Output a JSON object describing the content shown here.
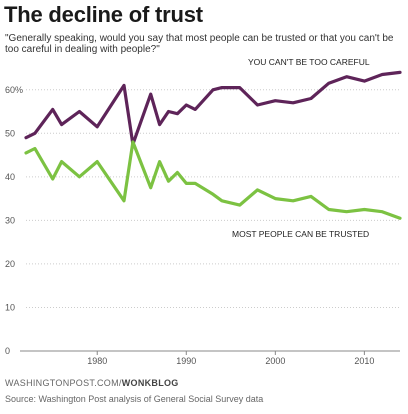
{
  "header": {
    "title": "The decline of trust",
    "subtitle": "\"Generally speaking, would you say that most people can be trusted or that you can't be too careful in dealing with people?\""
  },
  "footer": {
    "brand_main": "WASHINGTONPOST.COM/",
    "brand_sub": "WONKBLOG",
    "source": "Source: Washington Post analysis of General Social Survey data"
  },
  "colors": {
    "careful": "#5e2459",
    "trusted": "#7cc242",
    "axis": "#888888",
    "grid": "#cccccc",
    "tick_text": "#555555"
  },
  "chart_data": {
    "type": "line",
    "title": "The decline of trust",
    "xlabel": "",
    "ylabel": "",
    "xlim": [
      1972,
      2014
    ],
    "ylim": [
      0,
      65
    ],
    "x_ticks": [
      "1980",
      "1990",
      "2000",
      "2010"
    ],
    "x_tick_values": [
      1980,
      1990,
      2000,
      2010
    ],
    "y_ticks": [
      "0",
      "10",
      "20",
      "30",
      "40",
      "50",
      "60%"
    ],
    "y_tick_values": [
      0,
      10,
      20,
      30,
      40,
      50,
      60
    ],
    "grid": true,
    "series": [
      {
        "name": "YOU CAN'T BE TOO CAREFUL",
        "color": "#5e2459",
        "x": [
          1972,
          1973,
          1975,
          1976,
          1978,
          1980,
          1983,
          1984,
          1986,
          1987,
          1988,
          1989,
          1990,
          1991,
          1993,
          1994,
          1996,
          1998,
          2000,
          2002,
          2004,
          2006,
          2008,
          2010,
          2012,
          2014
        ],
        "values": [
          49,
          50,
          55.5,
          52,
          55,
          51.5,
          61,
          47.5,
          59,
          52,
          55,
          54.5,
          56.5,
          55.5,
          60,
          60.5,
          60.5,
          56.5,
          57.5,
          57,
          58,
          61.5,
          63,
          62,
          63.5,
          64
        ]
      },
      {
        "name": "MOST PEOPLE CAN BE TRUSTED",
        "color": "#7cc242",
        "x": [
          1972,
          1973,
          1975,
          1976,
          1978,
          1980,
          1983,
          1984,
          1986,
          1987,
          1988,
          1989,
          1990,
          1991,
          1993,
          1994,
          1996,
          1998,
          2000,
          2002,
          2004,
          2006,
          2008,
          2010,
          2012,
          2014
        ],
        "values": [
          45.5,
          46.5,
          39.5,
          43.5,
          40,
          43.5,
          34.5,
          48,
          37.5,
          43.5,
          39,
          41,
          38.5,
          38.5,
          36,
          34.5,
          33.5,
          37,
          35,
          34.5,
          35.5,
          32.5,
          32,
          32.5,
          32,
          30.5
        ]
      }
    ],
    "annotations": [
      {
        "text": "YOU CAN'T BE TOO CAREFUL",
        "series": 0
      },
      {
        "text": "MOST PEOPLE CAN BE TRUSTED",
        "series": 1
      }
    ]
  }
}
